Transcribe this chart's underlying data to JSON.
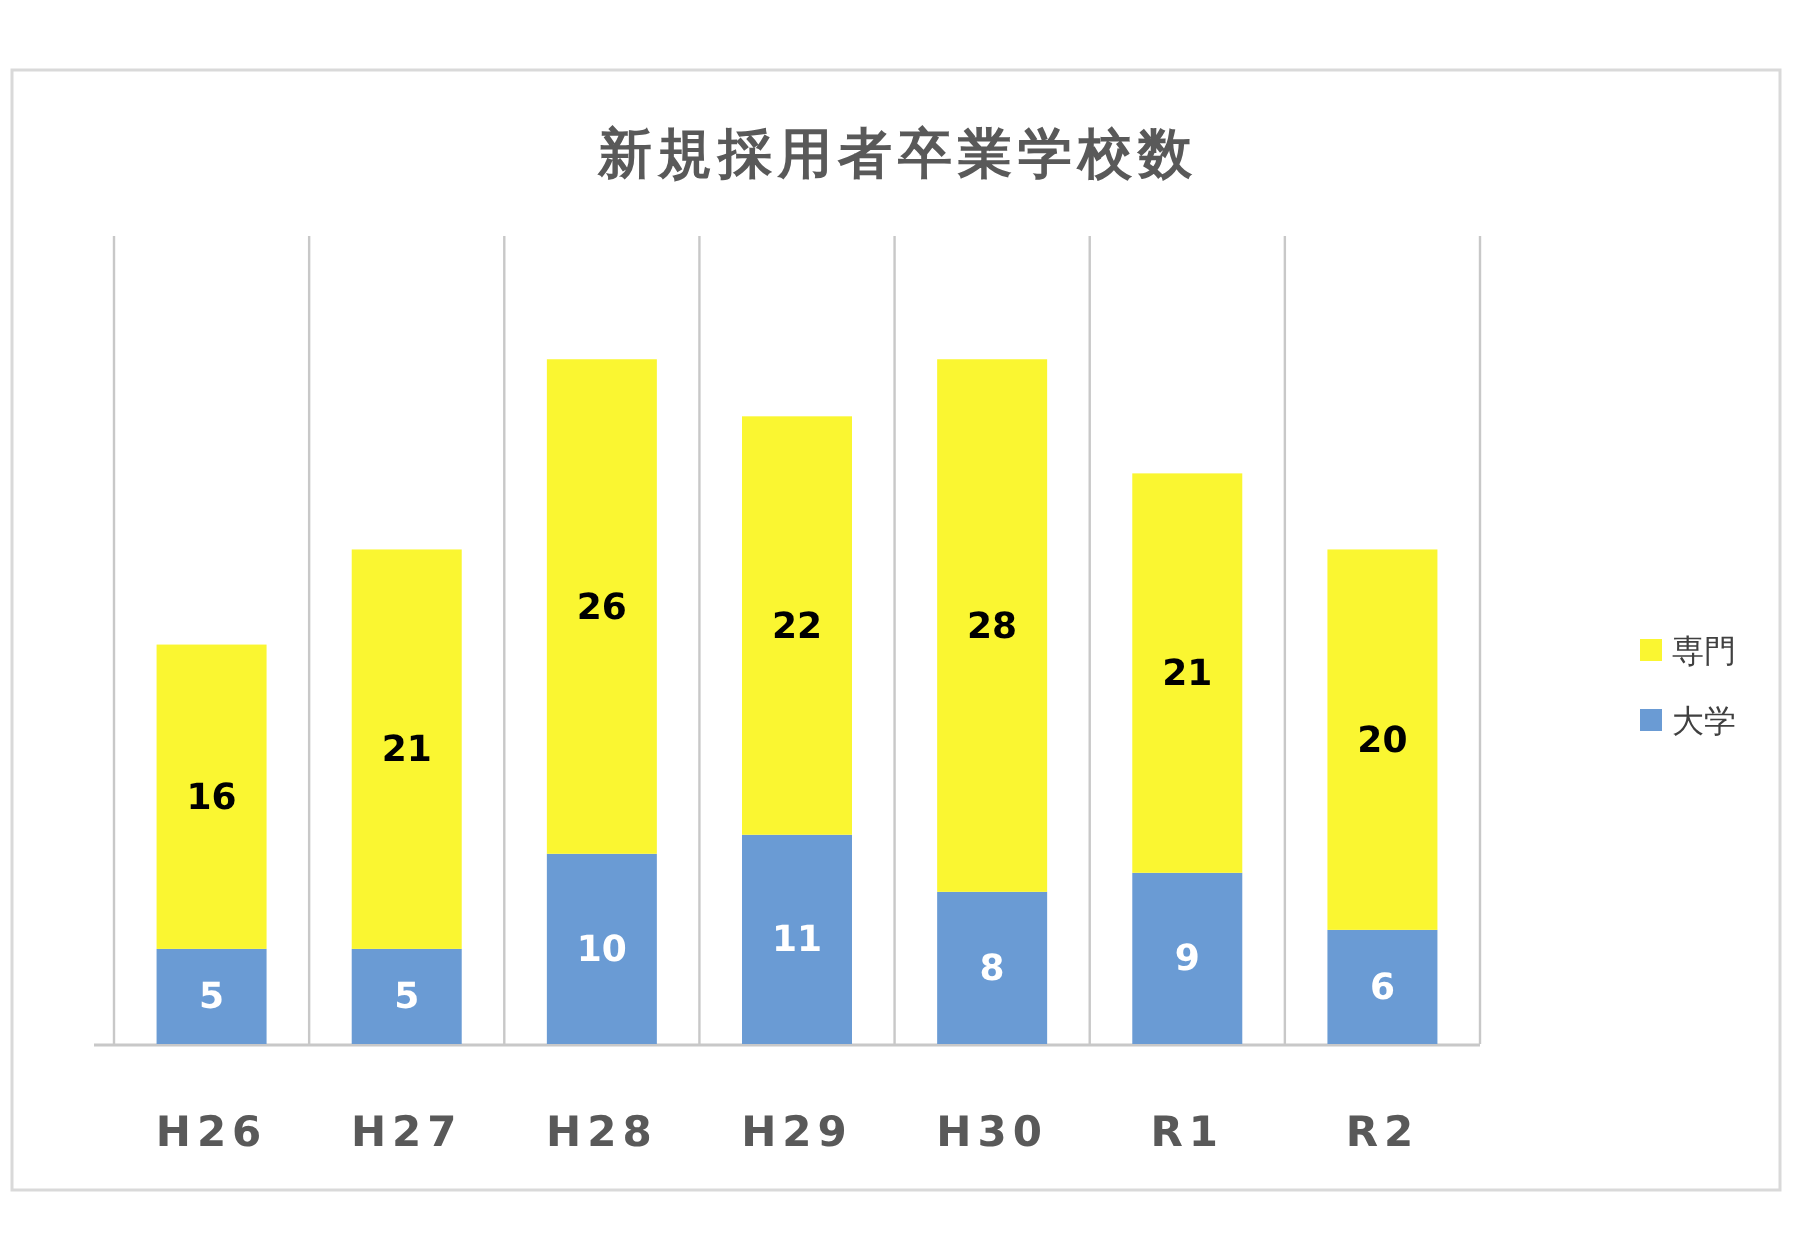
{
  "chart_data": {
    "type": "bar",
    "title": "新規採用者卒業学校数",
    "categories": [
      "H26",
      "H27",
      "H28",
      "H29",
      "H30",
      "R1",
      "R2"
    ],
    "stacked": true,
    "series": [
      {
        "name": "大学",
        "color": "#6a9bd4",
        "values": [
          5,
          5,
          10,
          11,
          8,
          9,
          6
        ]
      },
      {
        "name": "専門",
        "color": "#faf631",
        "values": [
          16,
          21,
          26,
          22,
          28,
          21,
          20
        ]
      }
    ],
    "data_labels": true,
    "legend": "right",
    "grid": "x"
  }
}
